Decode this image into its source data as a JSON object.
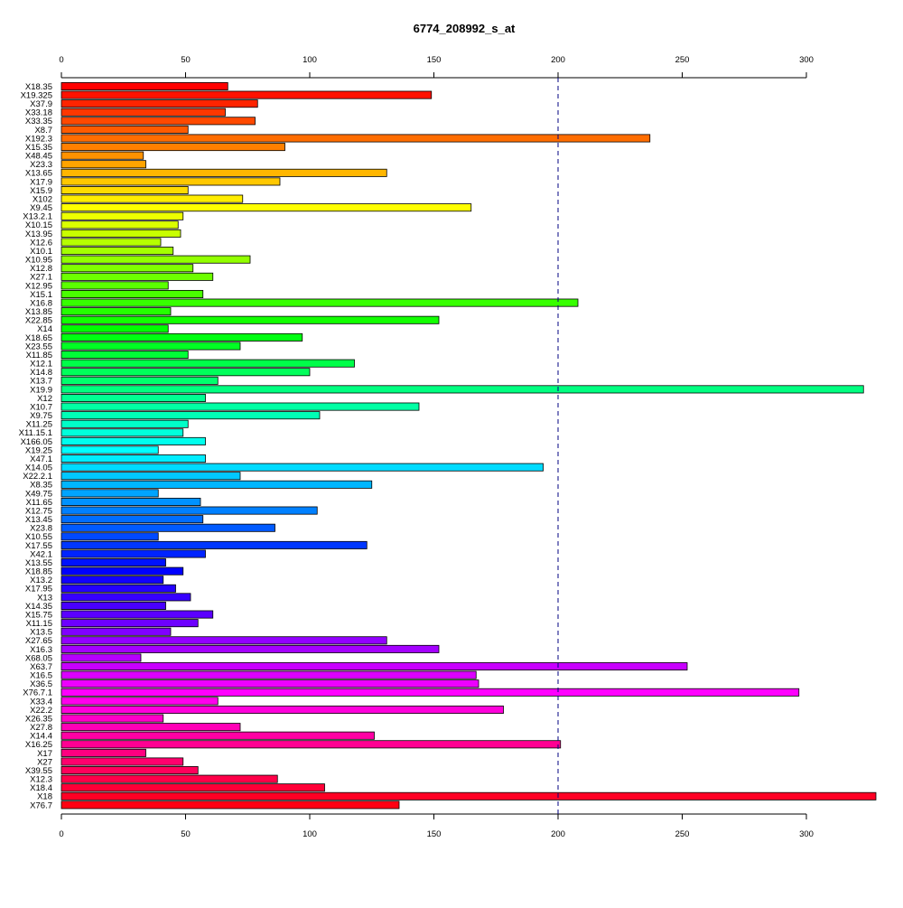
{
  "chart_data": {
    "type": "bar",
    "orientation": "horizontal",
    "title": "6774_208992_s_at",
    "xlabel": "",
    "ylabel": "",
    "xlim": [
      0,
      328
    ],
    "xticks": [
      0,
      50,
      100,
      150,
      200,
      250,
      300
    ],
    "axes": [
      "top",
      "bottom"
    ],
    "reference_line": {
      "x": 200,
      "style": "dashed",
      "color": "#000080"
    },
    "color_scheme": "rainbow",
    "categories": [
      "X18.35",
      "X19.325",
      "X37.9",
      "X33.18",
      "X33.35",
      "X8.7",
      "X192.3",
      "X15.35",
      "X48.45",
      "X23.3",
      "X13.65",
      "X17.9",
      "X15.9",
      "X102",
      "X9.45",
      "X13.2.1",
      "X10.15",
      "X13.95",
      "X12.6",
      "X10.1",
      "X10.95",
      "X12.8",
      "X27.1",
      "X12.95",
      "X15.1",
      "X16.8",
      "X13.85",
      "X22.85",
      "X14",
      "X18.65",
      "X23.55",
      "X11.85",
      "X12.1",
      "X14.8",
      "X13.7",
      "X19.9",
      "X12",
      "X10.7",
      "X9.75",
      "X11.25",
      "X11.15.1",
      "X166.05",
      "X19.25",
      "X47.1",
      "X14.05",
      "X22.2.1",
      "X8.35",
      "X49.75",
      "X11.65",
      "X12.75",
      "X13.45",
      "X23.8",
      "X10.55",
      "X17.55",
      "X42.1",
      "X13.55",
      "X18.85",
      "X13.2",
      "X17.95",
      "X13",
      "X14.35",
      "X15.75",
      "X11.15",
      "X13.5",
      "X27.65",
      "X16.3",
      "X68.05",
      "X63.7",
      "X16.5",
      "X36.5",
      "X76.7.1",
      "X33.4",
      "X22.2",
      "X26.35",
      "X27.8",
      "X14.4",
      "X16.25",
      "X17",
      "X27",
      "X39.55",
      "X12.3",
      "X18.4",
      "X18",
      "X76.7"
    ],
    "values": [
      67,
      149,
      79,
      66,
      78,
      51,
      237,
      90,
      33,
      34,
      131,
      88,
      51,
      73,
      165,
      49,
      47,
      48,
      40,
      45,
      76,
      53,
      61,
      43,
      57,
      208,
      44,
      152,
      43,
      97,
      72,
      51,
      118,
      100,
      63,
      323,
      58,
      144,
      104,
      51,
      49,
      58,
      39,
      58,
      194,
      72,
      125,
      39,
      56,
      103,
      57,
      86,
      39,
      123,
      58,
      42,
      49,
      41,
      46,
      52,
      42,
      61,
      55,
      44,
      131,
      152,
      32,
      252,
      167,
      168,
      297,
      63,
      178,
      41,
      72,
      126,
      201,
      34,
      49,
      55,
      87,
      106,
      328,
      136
    ]
  }
}
